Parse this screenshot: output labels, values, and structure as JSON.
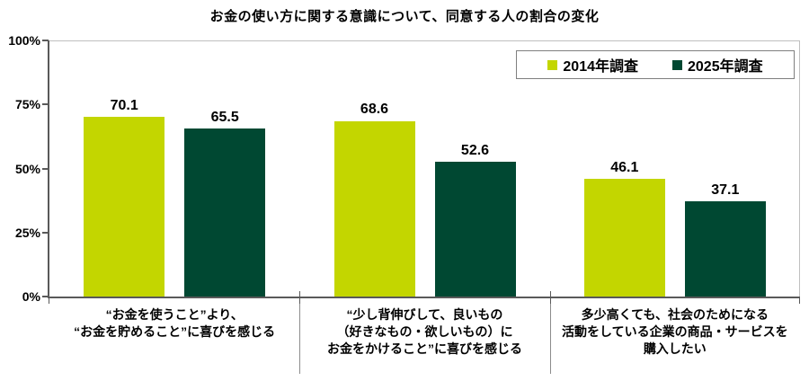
{
  "title": "お金の使い方に関する意識について、同意する人の割合の変化",
  "legend": {
    "items": [
      {
        "label": "2014年調査",
        "color": "#c3d600"
      },
      {
        "label": "2025年調査",
        "color": "#004832"
      }
    ]
  },
  "y_axis": {
    "tick_labels": [
      "100%",
      "75%",
      "50%",
      "25%",
      "0%"
    ]
  },
  "chart_data": {
    "type": "bar",
    "title": "お金の使い方に関する意識について、同意する人の割合の変化",
    "categories": [
      "“お金を使うこと”より、\n“お金を貯めること”に喜びを感じる",
      "“少し背伸びして、良いもの\n（好きなもの・欲しいもの）に\nお金をかけること”に喜びを感じる",
      "多少高くても、社会のためになる\n活動をしている企業の商品・サービスを\n購入したい"
    ],
    "series": [
      {
        "name": "2014年調査",
        "color": "#c3d600",
        "values": [
          70.1,
          68.6,
          46.1
        ]
      },
      {
        "name": "2025年調査",
        "color": "#004832",
        "values": [
          65.5,
          52.6,
          37.1
        ]
      }
    ],
    "xlabel": "",
    "ylabel": "",
    "ylim": [
      0,
      100
    ],
    "yticks": [
      0,
      25,
      50,
      75,
      100
    ],
    "ytick_suffix": "%",
    "grid": false,
    "value_labels": true,
    "legend_position": "top-right"
  }
}
